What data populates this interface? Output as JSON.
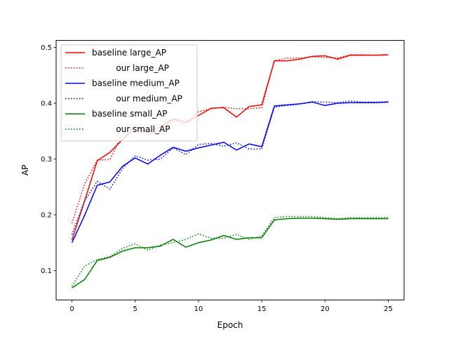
{
  "chart_data": {
    "type": "line",
    "title": "",
    "xlabel": "Epoch",
    "ylabel": "AP",
    "xlim": [
      -1.25,
      26.25
    ],
    "ylim": [
      0.0475,
      0.5125
    ],
    "xticks": [
      0,
      5,
      10,
      15,
      20,
      25
    ],
    "xtick_labels": [
      "0",
      "5",
      "10",
      "15",
      "20",
      "25"
    ],
    "yticks": [
      0.1,
      0.2,
      0.3,
      0.4,
      0.5
    ],
    "ytick_labels": [
      "0.1",
      "0.2",
      "0.3",
      "0.4",
      "0.5"
    ],
    "grid": false,
    "legend_position": "top-left",
    "x": [
      0,
      1,
      2,
      3,
      4,
      5,
      6,
      7,
      8,
      9,
      10,
      11,
      12,
      13,
      14,
      15,
      16,
      17,
      18,
      19,
      20,
      21,
      22,
      23,
      24,
      25
    ],
    "series": [
      {
        "name": "baseline large_AP",
        "color": "#ff0000",
        "style": "solid",
        "values": [
          0.155,
          0.225,
          0.297,
          0.312,
          0.335,
          0.357,
          0.348,
          0.358,
          0.372,
          0.366,
          0.378,
          0.391,
          0.392,
          0.375,
          0.394,
          0.397,
          0.476,
          0.476,
          0.479,
          0.484,
          0.485,
          0.479,
          0.486,
          0.486,
          0.486,
          0.487
        ]
      },
      {
        "name": "our large_AP",
        "color": "#ff0000",
        "style": "dotted",
        "values": [
          0.185,
          0.255,
          0.298,
          0.299,
          0.345,
          0.36,
          0.344,
          0.352,
          0.371,
          0.36,
          0.385,
          0.39,
          0.393,
          0.39,
          0.39,
          0.392,
          0.476,
          0.481,
          0.481,
          0.483,
          0.482,
          0.481,
          0.487,
          0.487,
          0.486,
          0.486
        ]
      },
      {
        "name": "baseline medium_AP",
        "color": "#0000ff",
        "style": "solid",
        "values": [
          0.15,
          0.199,
          0.253,
          0.259,
          0.287,
          0.302,
          0.291,
          0.307,
          0.321,
          0.314,
          0.32,
          0.325,
          0.33,
          0.316,
          0.327,
          0.322,
          0.395,
          0.397,
          0.399,
          0.402,
          0.396,
          0.4,
          0.401,
          0.401,
          0.401,
          0.402
        ]
      },
      {
        "name": "our medium_AP",
        "color": "#0000ff",
        "style": "dotted",
        "values": [
          0.165,
          0.225,
          0.26,
          0.246,
          0.283,
          0.306,
          0.298,
          0.3,
          0.32,
          0.308,
          0.326,
          0.328,
          0.323,
          0.329,
          0.318,
          0.318,
          0.393,
          0.396,
          0.398,
          0.403,
          0.402,
          0.401,
          0.404,
          0.402,
          0.402,
          0.403
        ]
      },
      {
        "name": "baseline small_AP",
        "color": "#008000",
        "style": "solid",
        "values": [
          0.069,
          0.084,
          0.118,
          0.124,
          0.135,
          0.141,
          0.141,
          0.144,
          0.156,
          0.142,
          0.15,
          0.155,
          0.163,
          0.156,
          0.159,
          0.159,
          0.191,
          0.193,
          0.194,
          0.194,
          0.193,
          0.192,
          0.193,
          0.193,
          0.193,
          0.193
        ]
      },
      {
        "name": "our small_AP",
        "color": "#008000",
        "style": "dotted",
        "values": [
          0.072,
          0.108,
          0.12,
          0.125,
          0.14,
          0.148,
          0.137,
          0.146,
          0.15,
          0.156,
          0.166,
          0.158,
          0.158,
          0.165,
          0.156,
          0.162,
          0.195,
          0.197,
          0.197,
          0.197,
          0.195,
          0.193,
          0.195,
          0.195,
          0.195,
          0.195
        ]
      }
    ]
  }
}
